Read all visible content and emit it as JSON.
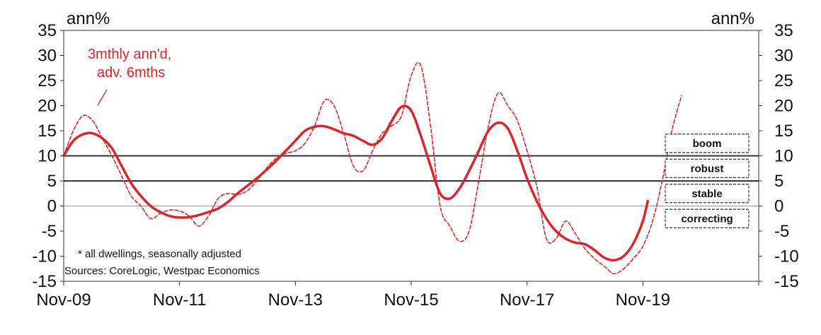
{
  "chart_data": {
    "type": "line",
    "left_unit_label": "ann%",
    "right_unit_label": "ann%",
    "ylim": [
      -15,
      35
    ],
    "y_ticks": [
      35,
      30,
      25,
      20,
      15,
      10,
      5,
      0,
      -5,
      -10,
      -15
    ],
    "x_range": [
      "2009-11",
      "2021-11"
    ],
    "x_tick_labels": [
      {
        "date": "2009-11",
        "label": "Nov-09"
      },
      {
        "date": "2011-11",
        "label": "Nov-11"
      },
      {
        "date": "2013-11",
        "label": "Nov-13"
      },
      {
        "date": "2015-11",
        "label": "Nov-15"
      },
      {
        "date": "2017-11",
        "label": "Nov-17"
      },
      {
        "date": "2019-11",
        "label": "Nov-19"
      }
    ],
    "x_tick_marks": [
      "2009-11",
      "2011-11",
      "2013-11",
      "2015-11",
      "2017-11",
      "2019-11",
      "2021-11"
    ],
    "reference_lines": [
      10,
      5
    ],
    "zero_line": 0,
    "series": [
      {
        "style": "solid",
        "color": "#d9262c",
        "points": [
          [
            "2009-11",
            10
          ],
          [
            "2010-01",
            13
          ],
          [
            "2010-03",
            14.3
          ],
          [
            "2010-05",
            14.5
          ],
          [
            "2010-07",
            13.5
          ],
          [
            "2010-09",
            11.5
          ],
          [
            "2010-11",
            8
          ],
          [
            "2011-01",
            4.5
          ],
          [
            "2011-03",
            2
          ],
          [
            "2011-05",
            0
          ],
          [
            "2011-07",
            -1.2
          ],
          [
            "2011-09",
            -2
          ],
          [
            "2011-11",
            -2.3
          ],
          [
            "2012-01",
            -2.2
          ],
          [
            "2012-03",
            -1.8
          ],
          [
            "2012-05",
            -1.2
          ],
          [
            "2012-07",
            -0.5
          ],
          [
            "2012-09",
            0.8
          ],
          [
            "2012-11",
            2.5
          ],
          [
            "2013-01",
            4
          ],
          [
            "2013-03",
            5.5
          ],
          [
            "2013-05",
            7.2
          ],
          [
            "2013-07",
            9
          ],
          [
            "2013-09",
            11
          ],
          [
            "2013-11",
            13
          ],
          [
            "2014-01",
            15
          ],
          [
            "2014-03",
            15.8
          ],
          [
            "2014-05",
            15.9
          ],
          [
            "2014-07",
            15.3
          ],
          [
            "2014-09",
            14.5
          ],
          [
            "2014-11",
            14
          ],
          [
            "2015-01",
            13
          ],
          [
            "2015-03",
            12.2
          ],
          [
            "2015-05",
            13.5
          ],
          [
            "2015-07",
            17
          ],
          [
            "2015-09",
            19.8
          ],
          [
            "2015-11",
            19
          ],
          [
            "2016-01",
            14
          ],
          [
            "2016-03",
            8
          ],
          [
            "2016-05",
            2.5
          ],
          [
            "2016-07",
            1.5
          ],
          [
            "2016-09",
            3.5
          ],
          [
            "2016-11",
            7
          ],
          [
            "2017-01",
            11
          ],
          [
            "2017-03",
            15
          ],
          [
            "2017-05",
            16.6
          ],
          [
            "2017-07",
            15.5
          ],
          [
            "2017-09",
            11
          ],
          [
            "2017-11",
            5.5
          ],
          [
            "2018-01",
            1
          ],
          [
            "2018-03",
            -2.5
          ],
          [
            "2018-05",
            -5
          ],
          [
            "2018-07",
            -6.5
          ],
          [
            "2018-09",
            -7.3
          ],
          [
            "2018-11",
            -7.6
          ],
          [
            "2019-01",
            -8.8
          ],
          [
            "2019-03",
            -10.3
          ],
          [
            "2019-05",
            -10.8
          ],
          [
            "2019-07",
            -10
          ],
          [
            "2019-09",
            -7.5
          ],
          [
            "2019-11",
            -3
          ],
          [
            "2019-12",
            1
          ]
        ]
      },
      {
        "name": "3mthly ann'd, adv. 6mths",
        "style": "dashed",
        "color": "#d9262c",
        "points": [
          [
            "2009-11",
            10
          ],
          [
            "2010-01",
            15
          ],
          [
            "2010-03",
            18
          ],
          [
            "2010-05",
            17
          ],
          [
            "2010-07",
            13.5
          ],
          [
            "2010-09",
            10
          ],
          [
            "2010-11",
            6
          ],
          [
            "2011-01",
            2
          ],
          [
            "2011-03",
            0
          ],
          [
            "2011-05",
            -2.5
          ],
          [
            "2011-07",
            -1.5
          ],
          [
            "2011-09",
            -0.8
          ],
          [
            "2011-11",
            -1
          ],
          [
            "2012-01",
            -2
          ],
          [
            "2012-03",
            -4
          ],
          [
            "2012-05",
            -2
          ],
          [
            "2012-07",
            1.5
          ],
          [
            "2012-09",
            2.5
          ],
          [
            "2012-11",
            2.3
          ],
          [
            "2013-01",
            3
          ],
          [
            "2013-03",
            5
          ],
          [
            "2013-05",
            7.5
          ],
          [
            "2013-07",
            9.5
          ],
          [
            "2013-09",
            10.5
          ],
          [
            "2013-11",
            11
          ],
          [
            "2014-01",
            12.5
          ],
          [
            "2014-03",
            16
          ],
          [
            "2014-05",
            21
          ],
          [
            "2014-07",
            20
          ],
          [
            "2014-09",
            14.5
          ],
          [
            "2014-11",
            8
          ],
          [
            "2015-01",
            7
          ],
          [
            "2015-03",
            11
          ],
          [
            "2015-05",
            14.5
          ],
          [
            "2015-07",
            16
          ],
          [
            "2015-09",
            18
          ],
          [
            "2015-11",
            26
          ],
          [
            "2016-01",
            28
          ],
          [
            "2016-03",
            16
          ],
          [
            "2016-05",
            0
          ],
          [
            "2016-07",
            -4
          ],
          [
            "2016-09",
            -7
          ],
          [
            "2016-11",
            -5
          ],
          [
            "2017-01",
            5
          ],
          [
            "2017-03",
            16
          ],
          [
            "2017-05",
            22.5
          ],
          [
            "2017-07",
            20
          ],
          [
            "2017-09",
            17
          ],
          [
            "2017-11",
            11
          ],
          [
            "2018-01",
            4
          ],
          [
            "2018-03",
            -6.5
          ],
          [
            "2018-05",
            -6.5
          ],
          [
            "2018-07",
            -3
          ],
          [
            "2018-09",
            -5.5
          ],
          [
            "2018-11",
            -8.5
          ],
          [
            "2019-01",
            -10.5
          ],
          [
            "2019-03",
            -12
          ],
          [
            "2019-05",
            -13.5
          ],
          [
            "2019-07",
            -12.5
          ],
          [
            "2019-09",
            -10.5
          ],
          [
            "2019-11",
            -8
          ],
          [
            "2020-01",
            -3
          ],
          [
            "2020-03",
            5
          ],
          [
            "2020-05",
            15
          ],
          [
            "2020-07",
            22
          ]
        ]
      }
    ],
    "series_annotation": {
      "lines": [
        "3mthly ann'd,",
        "adv. 6mths"
      ]
    },
    "regime_labels": [
      {
        "label": "boom",
        "y": 12.5
      },
      {
        "label": "robust",
        "y": 7.5
      },
      {
        "label": "stable",
        "y": 2.5
      },
      {
        "label": "correcting",
        "y": -2.5
      }
    ],
    "footnotes": [
      "* all dwellings, seasonally adjusted",
      "Sources: CoreLogic, Westpac Economics"
    ],
    "colors": {
      "series": "#d9262c",
      "reference": "#333333",
      "axis": "#333333",
      "zero": "#999999",
      "regime_border": "#555555"
    }
  }
}
